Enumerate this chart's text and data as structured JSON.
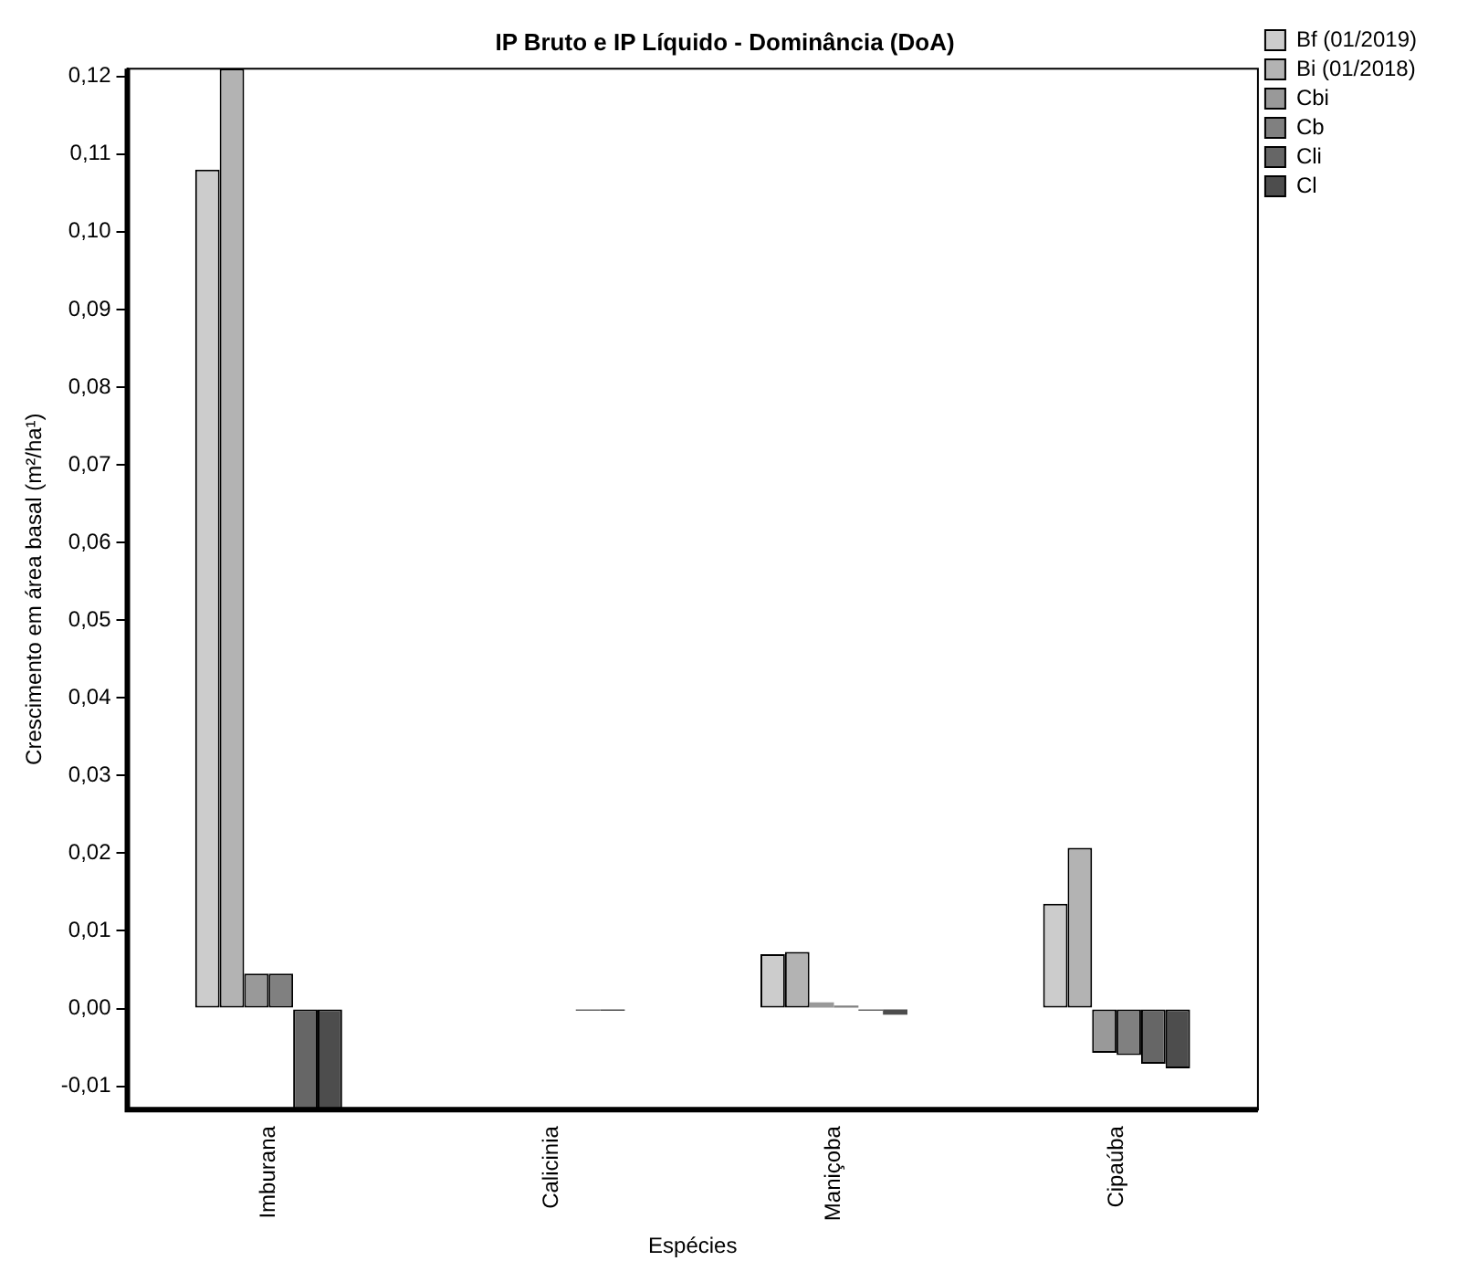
{
  "chart_data": {
    "type": "bar",
    "title": "IP Bruto e IP Líquido - Dominância (DoA)",
    "xlabel": "Espécies",
    "ylabel": "Crescimento em área basal (m²/ha¹)",
    "categories": [
      "Imburana",
      "Calicinia",
      "Maniçoba",
      "Cipaúba"
    ],
    "series": [
      {
        "name": "Bf (01/2019)",
        "color": "#cccccc",
        "values": [
          0.108,
          0,
          0.007,
          0.0135
        ]
      },
      {
        "name": "Bi (01/2018)",
        "color": "#b3b3b3",
        "values": [
          0.121,
          0,
          0.0073,
          0.0207
        ]
      },
      {
        "name": "Cbi",
        "color": "#999999",
        "values": [
          0.0045,
          0,
          0.0008,
          -0.0057
        ]
      },
      {
        "name": "Cb",
        "color": "#808080",
        "values": [
          0.0045,
          0,
          0.0004,
          -0.006
        ]
      },
      {
        "name": "Cli",
        "color": "#666666",
        "values": [
          -0.013,
          -0.0003,
          -0.0003,
          -0.0071
        ]
      },
      {
        "name": "Cl",
        "color": "#4d4d4d",
        "values": [
          -0.013,
          -0.0003,
          -0.0008,
          -0.0077
        ]
      }
    ],
    "ylim": [
      -0.013,
      0.121
    ],
    "yticks": [
      {
        "value": -0.01,
        "label": "-0,01"
      },
      {
        "value": 0,
        "label": "0,00"
      },
      {
        "value": 0.01,
        "label": "0,01"
      },
      {
        "value": 0.02,
        "label": "0,02"
      },
      {
        "value": 0.03,
        "label": "0,03"
      },
      {
        "value": 0.04,
        "label": "0,04"
      },
      {
        "value": 0.05,
        "label": "0,05"
      },
      {
        "value": 0.06,
        "label": "0,06"
      },
      {
        "value": 0.07,
        "label": "0,07"
      },
      {
        "value": 0.08,
        "label": "0,08"
      },
      {
        "value": 0.09,
        "label": "0,09"
      },
      {
        "value": 0.1,
        "label": "0,10"
      },
      {
        "value": 0.11,
        "label": "0,11"
      },
      {
        "value": 0.12,
        "label": "0,12"
      }
    ],
    "grid": false,
    "legend": "top right"
  }
}
